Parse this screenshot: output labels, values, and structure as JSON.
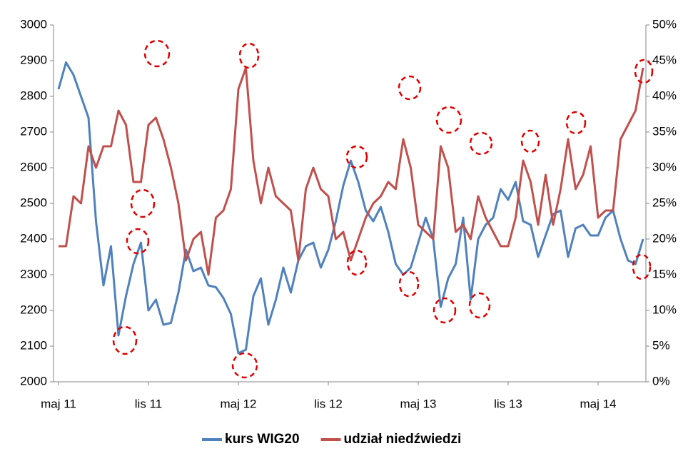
{
  "chart_data": {
    "type": "line",
    "categories": [
      "maj 11",
      null,
      null,
      null,
      null,
      null,
      null,
      null,
      null,
      null,
      null,
      null,
      "lis 11",
      null,
      null,
      null,
      null,
      null,
      null,
      null,
      null,
      null,
      null,
      null,
      "maj 12",
      null,
      null,
      null,
      null,
      null,
      null,
      null,
      null,
      null,
      null,
      null,
      "lis 12",
      null,
      null,
      null,
      null,
      null,
      null,
      null,
      null,
      null,
      null,
      null,
      "maj 13",
      null,
      null,
      null,
      null,
      null,
      null,
      null,
      null,
      null,
      null,
      null,
      "lis 13",
      null,
      null,
      null,
      null,
      null,
      null,
      null,
      null,
      null,
      null,
      null,
      "maj 14",
      null,
      null,
      null,
      null,
      null,
      null
    ],
    "series": [
      {
        "name": "kurs WIG20",
        "color": "#4f81bd",
        "values": [
          2820,
          2895,
          2860,
          2800,
          2740,
          2450,
          2270,
          2380,
          2130,
          2240,
          2330,
          2390,
          2200,
          2230,
          2160,
          2165,
          2250,
          2370,
          2310,
          2320,
          2270,
          2265,
          2235,
          2190,
          2080,
          2090,
          2240,
          2290,
          2160,
          2230,
          2320,
          2250,
          2340,
          2380,
          2390,
          2320,
          2370,
          2450,
          2550,
          2620,
          2560,
          2480,
          2450,
          2490,
          2420,
          2330,
          2300,
          2320,
          2390,
          2460,
          2400,
          2210,
          2290,
          2330,
          2460,
          2230,
          2400,
          2440,
          2460,
          2540,
          2510,
          2560,
          2450,
          2440,
          2350,
          2410,
          2470,
          2480,
          2350,
          2430,
          2440,
          2410,
          2410,
          2460,
          2480,
          2400,
          2340,
          2330,
          2400
        ]
      },
      {
        "name": "udział niedźwiedzi",
        "color": "#c0504d",
        "axis": "y2",
        "values": [
          19,
          19,
          26,
          25,
          33,
          30,
          33,
          33,
          38,
          36,
          28,
          28,
          36,
          37,
          34,
          30,
          25,
          17,
          20,
          21,
          15,
          23,
          24,
          27,
          41,
          44,
          31,
          25,
          30,
          26,
          25,
          24,
          17,
          27,
          30,
          27,
          26,
          20,
          21,
          17,
          20,
          23,
          25,
          26,
          28,
          27,
          34,
          30,
          22,
          21,
          20,
          33,
          30,
          21,
          22,
          20,
          26,
          23,
          21,
          19,
          19,
          23,
          31,
          28,
          22,
          29,
          22,
          27,
          34,
          27,
          29,
          33,
          23,
          24,
          24,
          34,
          36,
          38,
          44
        ]
      }
    ],
    "ylim": [
      2000,
      3000
    ],
    "yticks": [
      2000,
      2100,
      2200,
      2300,
      2400,
      2500,
      2600,
      2700,
      2800,
      2900,
      3000
    ],
    "y2lim": [
      0,
      50
    ],
    "y2ticks": [
      {
        "value": 0,
        "label": "0%"
      },
      {
        "value": 5,
        "label": "5%"
      },
      {
        "value": 10,
        "label": "10%"
      },
      {
        "value": 15,
        "label": "15%"
      },
      {
        "value": 20,
        "label": "20%"
      },
      {
        "value": 25,
        "label": "25%"
      },
      {
        "value": 30,
        "label": "30%"
      },
      {
        "value": 35,
        "label": "35%"
      },
      {
        "value": 40,
        "label": "40%"
      },
      {
        "value": 45,
        "label": "45%"
      },
      {
        "value": 50,
        "label": "50%"
      }
    ],
    "grid": false,
    "legend": "bottom"
  }
}
